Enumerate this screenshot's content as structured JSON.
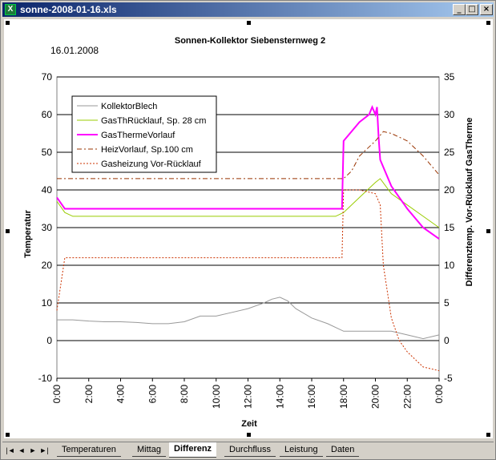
{
  "window": {
    "title": "sonne-2008-01-16.xls",
    "minimize": "_",
    "restore": "□",
    "close": "×"
  },
  "sheet_date": "16.01.2008",
  "tabs": [
    "Temperaturen",
    "Mittag",
    "Differenz",
    "Durchfluss",
    "Leistung",
    "Daten"
  ],
  "active_tab": "Differenz",
  "nav": [
    "|◄",
    "◄",
    "►",
    "►|"
  ],
  "chart_data": {
    "type": "line",
    "title": "Sonnen-Kollektor Siebensternweg 2",
    "xlabel": "Zeit",
    "ylabel": "Temperatur",
    "y2label": "Differenztemp. Vor-Rücklauf GasTherme",
    "x_ticks": [
      "0:00",
      "2:00",
      "4:00",
      "6:00",
      "8:00",
      "10:00",
      "12:00",
      "14:00",
      "16:00",
      "18:00",
      "20:00",
      "22:00",
      "0:00"
    ],
    "ylim": [
      -10,
      70
    ],
    "y_ticks": [
      -10,
      0,
      10,
      20,
      30,
      40,
      50,
      60,
      70
    ],
    "y2lim": [
      -5,
      35
    ],
    "y2_ticks": [
      -5,
      0,
      5,
      10,
      15,
      20,
      25,
      30,
      35
    ],
    "grid": true,
    "legend_position": "top-left",
    "x_unit": "hours",
    "series": [
      {
        "name": "KollektorBlech",
        "axis": "left",
        "color": "#999999",
        "style": "solid",
        "x": [
          0,
          1,
          2,
          3,
          4,
          5,
          6,
          7,
          8,
          9,
          9.5,
          10,
          11,
          12,
          13,
          13.5,
          14,
          14.5,
          15,
          16,
          17,
          18,
          18.5,
          19,
          20,
          21,
          22,
          23,
          24
        ],
        "y": [
          5.5,
          5.5,
          5.2,
          5,
          5,
          4.8,
          4.5,
          4.5,
          5,
          6.5,
          6.5,
          6.5,
          7.5,
          8.5,
          10,
          11,
          11.5,
          10.5,
          8.5,
          6,
          4.5,
          2.5,
          2.5,
          2.5,
          2.5,
          2.5,
          1.5,
          0.5,
          1.5
        ]
      },
      {
        "name": "GasThRücklauf, Sp. 28 cm",
        "axis": "left",
        "color": "#99cc00",
        "style": "solid",
        "x": [
          0,
          0.5,
          1,
          2,
          4,
          6,
          8,
          10,
          12,
          14,
          16,
          17.5,
          18,
          19,
          20,
          20.3,
          21,
          22,
          23,
          24
        ],
        "y": [
          37,
          34,
          33,
          33,
          33,
          33,
          33,
          33,
          33,
          33,
          33,
          33,
          34,
          38,
          42,
          43,
          39,
          36,
          33,
          30
        ]
      },
      {
        "name": "GasThermeVorlauf",
        "axis": "left",
        "color": "#ff00ff",
        "style": "solid",
        "x": [
          0,
          0.5,
          17.9,
          18,
          19,
          19.6,
          19.8,
          20,
          20.1,
          20.2,
          20.3,
          21,
          22,
          23,
          24
        ],
        "y": [
          38,
          35,
          35,
          53,
          58,
          60,
          62,
          60,
          62,
          54,
          48,
          41,
          35,
          30,
          27
        ]
      },
      {
        "name": "HeizVorlauf,  Sp.100 cm",
        "axis": "left",
        "color": "#993300",
        "style": "dashdot",
        "x": [
          0,
          2,
          4,
          6,
          8,
          10,
          12,
          14,
          16,
          18,
          18.5,
          19,
          20,
          20.5,
          21,
          22,
          23,
          24
        ],
        "y": [
          43,
          43,
          43,
          43,
          43,
          43,
          43,
          43,
          43,
          43,
          45,
          49,
          53,
          55.5,
          55,
          53,
          49,
          44
        ]
      },
      {
        "name": "Gasheizung Vor-Rücklauf",
        "axis": "right",
        "color": "#cc3300",
        "style": "dotted",
        "x": [
          0,
          0.5,
          17.9,
          18,
          18.5,
          19,
          20,
          20.3,
          20.5,
          21,
          21.5,
          22,
          23,
          24
        ],
        "y": [
          4,
          11,
          11,
          20,
          20,
          20,
          19.5,
          18,
          10,
          3,
          0,
          -1.5,
          -3.5,
          -4
        ]
      }
    ]
  }
}
